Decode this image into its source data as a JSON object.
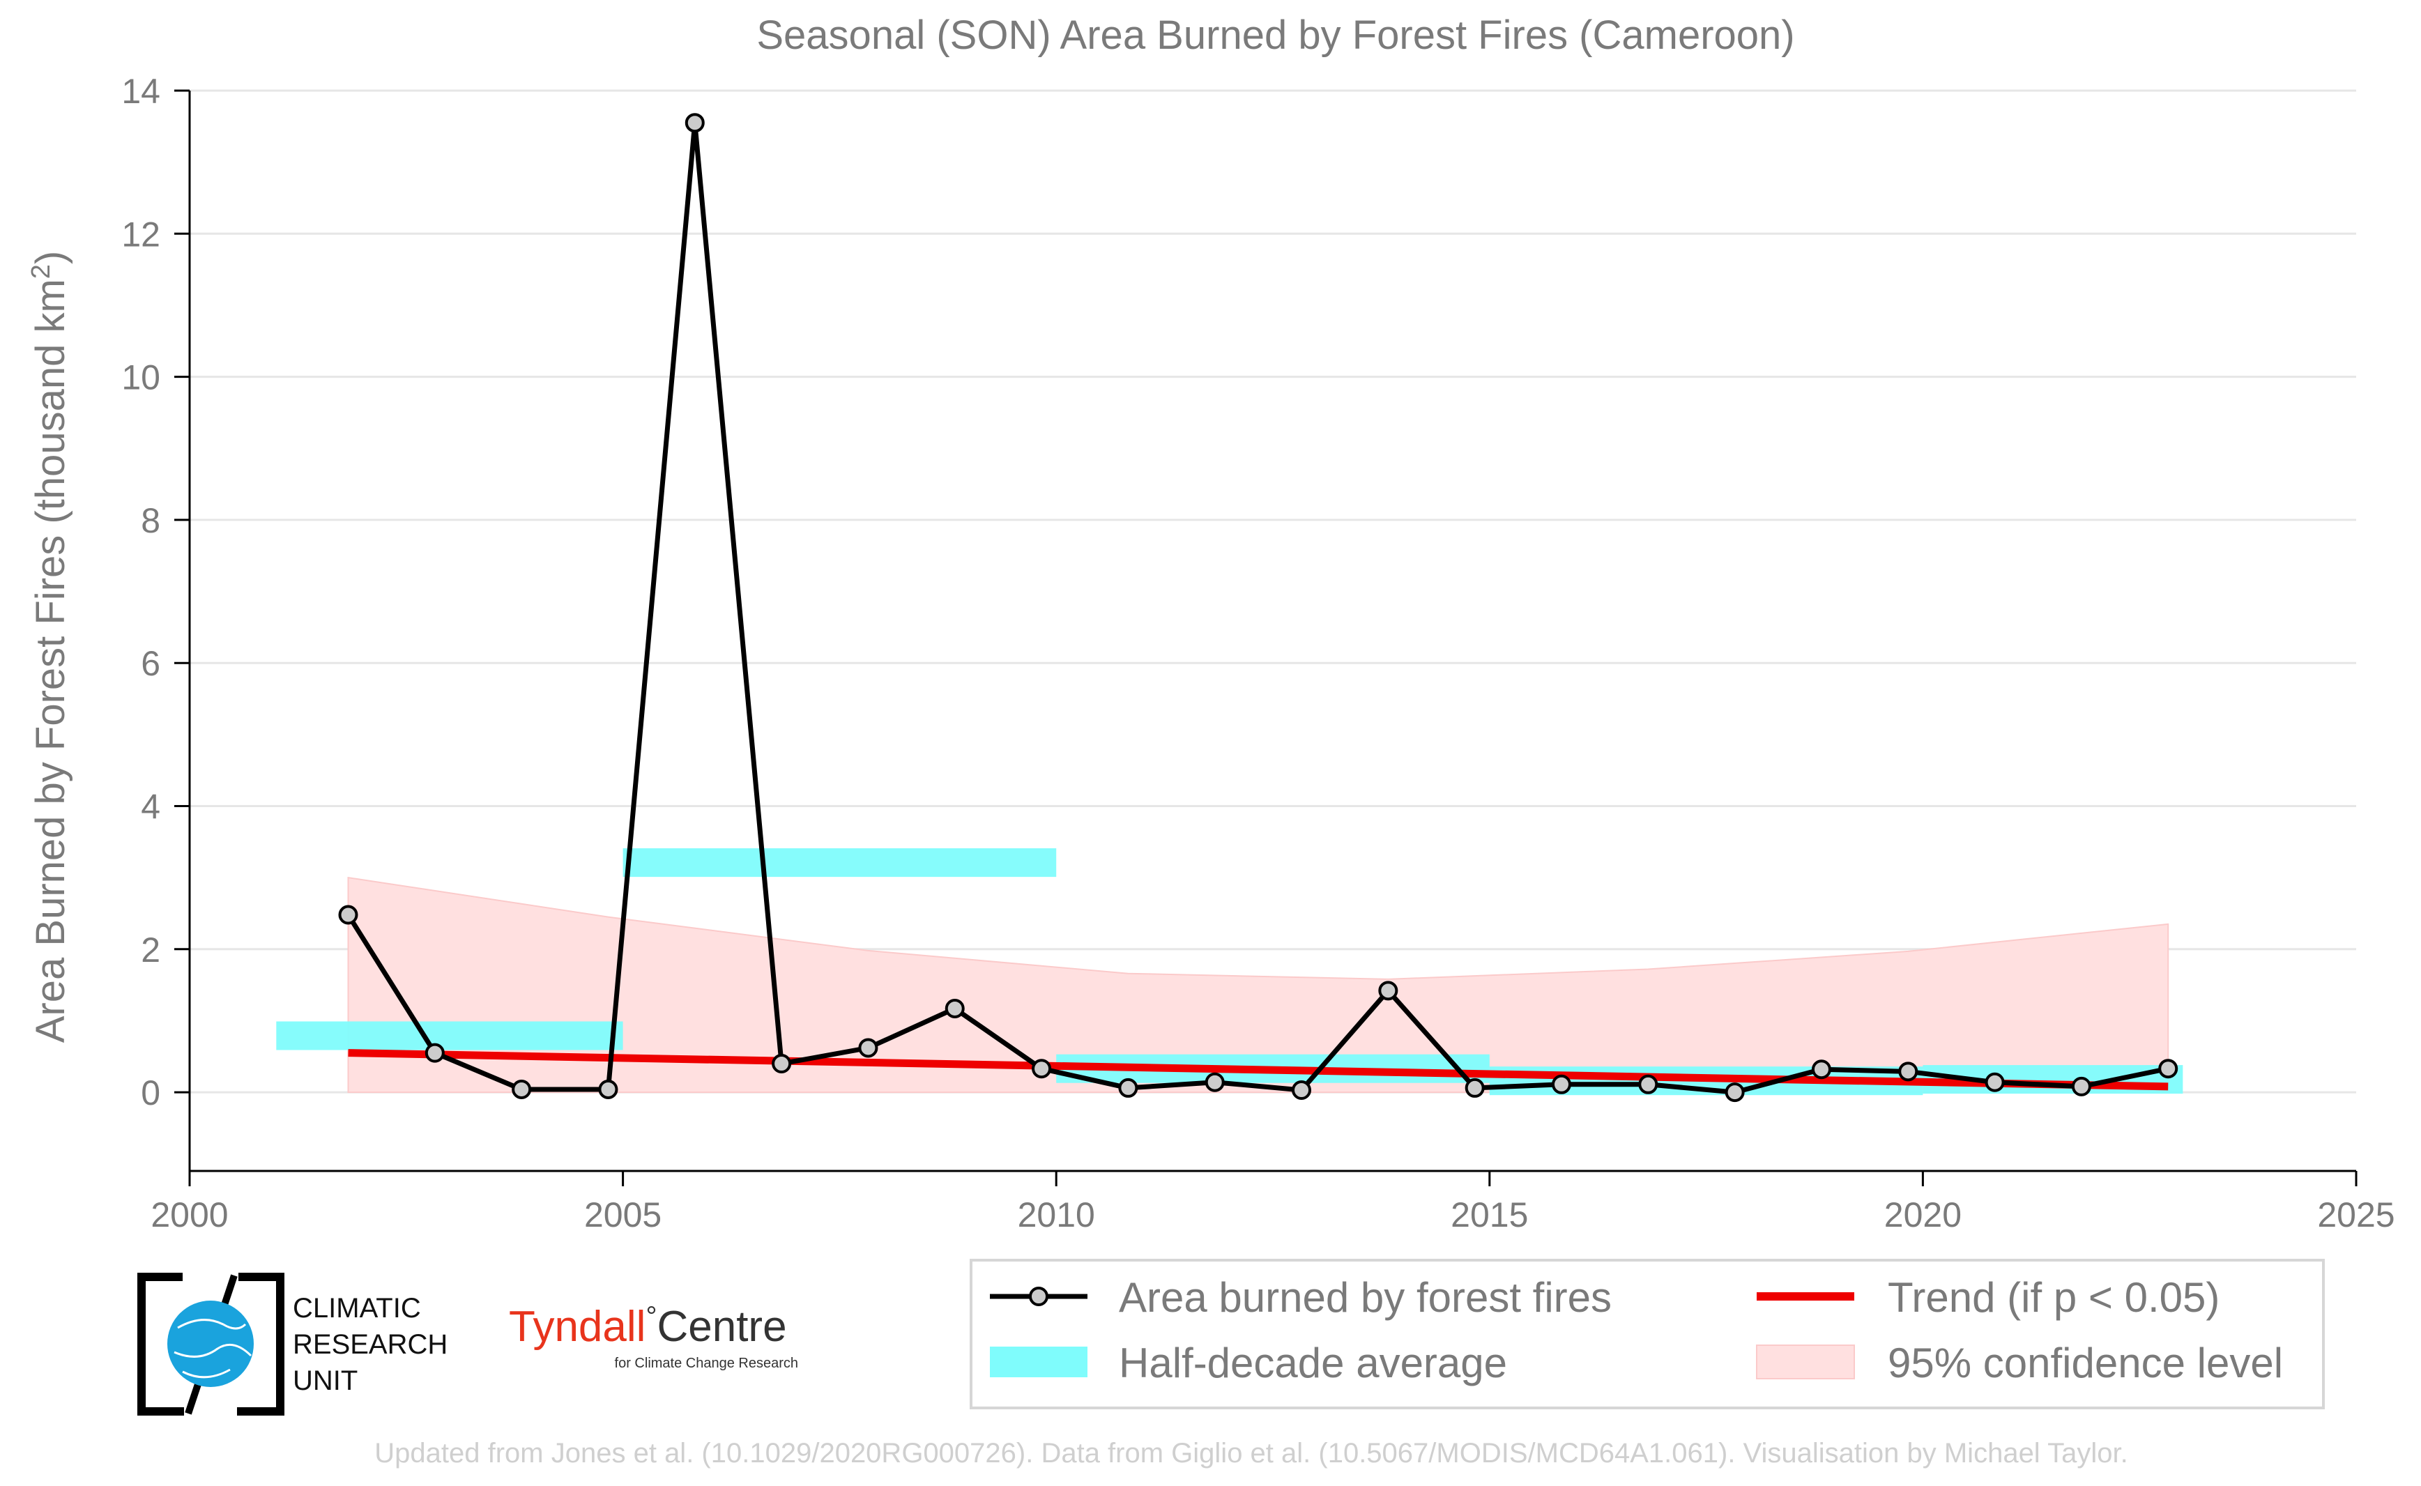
{
  "chart_data": {
    "type": "line",
    "title": "Seasonal (SON) Area Burned by Forest Fires (Cameroon)",
    "xlabel": "",
    "ylabel": "Area Burned by Forest Fires (thousand km",
    "ylabel_superscript": "2",
    "ylabel_close": ")",
    "xlim": [
      2000,
      2025
    ],
    "ylim": [
      -1.1,
      14
    ],
    "x_ticks": [
      2000,
      2005,
      2010,
      2015,
      2020,
      2025
    ],
    "y_ticks": [
      0,
      2,
      4,
      6,
      8,
      10,
      12,
      14
    ],
    "grid": "horizontal",
    "series": [
      {
        "name": "Area burned by forest fires",
        "color": "#000000",
        "marker_fill": "#cccccc",
        "x": [
          2001.83,
          2002.83,
          2003.83,
          2004.83,
          2005.83,
          2006.83,
          2007.83,
          2008.83,
          2009.83,
          2010.83,
          2011.83,
          2012.83,
          2013.83,
          2014.83,
          2015.83,
          2016.83,
          2017.83,
          2018.83,
          2019.83,
          2020.83,
          2021.83,
          2022.83
        ],
        "y": [
          2.48,
          0.55,
          0.04,
          0.04,
          13.55,
          0.4,
          0.62,
          1.17,
          0.33,
          0.06,
          0.14,
          0.03,
          1.42,
          0.06,
          0.11,
          0.11,
          0.0,
          0.32,
          0.29,
          0.14,
          0.08,
          0.33
        ]
      }
    ],
    "half_decade_average": {
      "name": "Half-decade average",
      "color": "#7ffcfc",
      "segments": [
        {
          "x0": 2001.0,
          "x1": 2005.0,
          "y": 0.79,
          "band": 0.2
        },
        {
          "x0": 2005.0,
          "x1": 2010.0,
          "y": 3.21,
          "band": 0.2
        },
        {
          "x0": 2010.0,
          "x1": 2015.0,
          "y": 0.33,
          "band": 0.2
        },
        {
          "x0": 2015.0,
          "x1": 2020.0,
          "y": 0.16,
          "band": 0.2
        },
        {
          "x0": 2020.0,
          "x1": 2023.0,
          "y": 0.18,
          "band": 0.2
        }
      ]
    },
    "trend": {
      "name": "Trend (if p < 0.05)",
      "color": "#ee0000",
      "x": [
        2001.83,
        2022.83
      ],
      "y": [
        0.55,
        0.08
      ]
    },
    "confidence": {
      "name": "95% confidence level",
      "color": "#ffe0e0",
      "x": [
        2001.83,
        2004.83,
        2007.83,
        2010.83,
        2013.83,
        2016.83,
        2019.83,
        2022.83
      ],
      "upper": [
        3.0,
        2.45,
        1.98,
        1.66,
        1.58,
        1.72,
        1.97,
        2.35
      ],
      "lower": [
        0.0,
        0.0,
        0.0,
        0.0,
        0.0,
        0.0,
        0.0,
        0.0
      ]
    },
    "legend_position": "bottom-right"
  },
  "legend": {
    "items": [
      {
        "label": "Area burned by forest fires",
        "kind": "line-marker",
        "color": "#000000"
      },
      {
        "label": "Trend (if p < 0.05)",
        "kind": "line",
        "color": "#ee0000"
      },
      {
        "label": "Half-decade average",
        "kind": "patch",
        "color": "#7ffcfc"
      },
      {
        "label": "95% confidence level",
        "kind": "patch",
        "color": "#ffe0e0"
      }
    ]
  },
  "logos": {
    "cru": {
      "lines": [
        "CLIMATIC",
        "RESEARCH",
        "UNIT"
      ]
    },
    "tyndall": {
      "main": "Tyndall",
      "degree": "°",
      "centre": "Centre",
      "sub": "for Climate Change Research"
    }
  },
  "footer": "Updated from Jones et al. (10.1029/2020RG000726). Data from Giglio et al. (10.5067/MODIS/MCD64A1.061). Visualisation by Michael Taylor."
}
